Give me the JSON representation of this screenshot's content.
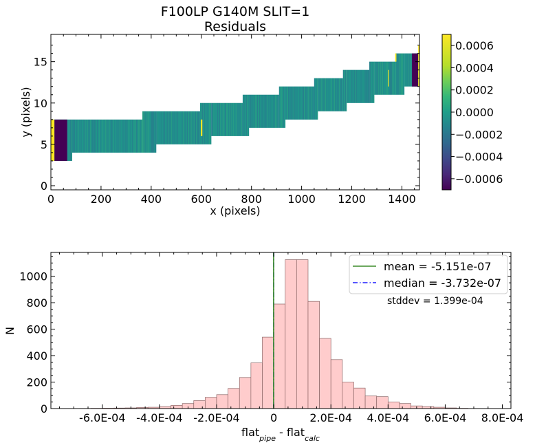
{
  "figure": {
    "title_line1": "F100LP   G140M   SLIT=1",
    "title_line2": "Residuals"
  },
  "chart_data": [
    {
      "type": "heatmap",
      "xlabel": "x (pixels)",
      "ylabel": "y (pixels)",
      "xlim": [
        0,
        1470
      ],
      "ylim": [
        -0.5,
        18.3
      ],
      "xticks": [
        0,
        200,
        400,
        600,
        800,
        1000,
        1200,
        1400
      ],
      "xtick_labels": [
        "0",
        "200",
        "400",
        "600",
        "800",
        "1000",
        "1200",
        "1400"
      ],
      "yticks": [
        0,
        5,
        10,
        15
      ],
      "ytick_labels": [
        "0",
        "5",
        "10",
        "15"
      ],
      "colormap": "viridis",
      "colorbar": {
        "vmin": -0.0007,
        "vmax": 0.0007,
        "ticks": [
          -0.0006,
          -0.0004,
          -0.0002,
          0,
          0.0002,
          0.0004,
          0.0006
        ],
        "tick_labels": [
          "−0.0006",
          "−0.0004",
          "−0.0002",
          "0.0000",
          "0.0002",
          "0.0004",
          "0.0006"
        ]
      },
      "trace_segments": [
        {
          "x0": 0,
          "x1": 65,
          "y0": 3,
          "y1": 8
        },
        {
          "x0": 65,
          "x1": 85,
          "y0": 3,
          "y1": 8
        },
        {
          "x0": 85,
          "x1": 365,
          "y0": 4,
          "y1": 8
        },
        {
          "x0": 365,
          "x1": 420,
          "y0": 4,
          "y1": 9
        },
        {
          "x0": 420,
          "x1": 595,
          "y0": 5,
          "y1": 9
        },
        {
          "x0": 595,
          "x1": 640,
          "y0": 5,
          "y1": 10
        },
        {
          "x0": 640,
          "x1": 765,
          "y0": 6,
          "y1": 10
        },
        {
          "x0": 765,
          "x1": 790,
          "y0": 6,
          "y1": 11
        },
        {
          "x0": 790,
          "x1": 910,
          "y0": 7,
          "y1": 11
        },
        {
          "x0": 910,
          "x1": 935,
          "y0": 7,
          "y1": 12
        },
        {
          "x0": 935,
          "x1": 1050,
          "y0": 8,
          "y1": 12
        },
        {
          "x0": 1050,
          "x1": 1065,
          "y0": 8,
          "y1": 13
        },
        {
          "x0": 1065,
          "x1": 1165,
          "y0": 9,
          "y1": 13
        },
        {
          "x0": 1165,
          "x1": 1180,
          "y0": 9,
          "y1": 14
        },
        {
          "x0": 1180,
          "x1": 1270,
          "y0": 10,
          "y1": 14
        },
        {
          "x0": 1270,
          "x1": 1290,
          "y0": 10,
          "y1": 15
        },
        {
          "x0": 1290,
          "x1": 1375,
          "y0": 11,
          "y1": 15
        },
        {
          "x0": 1375,
          "x1": 1410,
          "y0": 11,
          "y1": 16
        },
        {
          "x0": 1410,
          "x1": 1440,
          "y0": 12,
          "y1": 16
        },
        {
          "x0": 1440,
          "x1": 1465,
          "y0": 12,
          "y1": 16
        }
      ],
      "extreme_patches": [
        {
          "x0": 14,
          "x1": 65,
          "y0": 3,
          "y1": 8,
          "value": -0.0007
        },
        {
          "x0": 1440,
          "x1": 1465,
          "y0": 12,
          "y1": 16,
          "value": -0.0007
        },
        {
          "x0": 0,
          "x1": 14,
          "y0": 3,
          "y1": 8,
          "value": 0.0007
        },
        {
          "x0": 1465,
          "x1": 1470,
          "y0": 12,
          "y1": 17,
          "value": 0.0007
        },
        {
          "x0": 598,
          "x1": 604,
          "y0": 6,
          "y1": 8,
          "value": 0.0007
        },
        {
          "x0": 1373,
          "x1": 1378,
          "y0": 15,
          "y1": 16,
          "value": 0.0007
        },
        {
          "x0": 1344,
          "x1": 1347,
          "y0": 12,
          "y1": 14,
          "value": 0.0006
        }
      ]
    },
    {
      "type": "bar",
      "subtype": "histogram",
      "xlabel": "flat_pipe - flat_calc",
      "xlabel_parts": {
        "a": "flat",
        "a_sub": "pipe",
        "sep": " - ",
        "b": "flat",
        "b_sub": "calc"
      },
      "ylabel": "N",
      "xlim": [
        -0.00078,
        0.00083
      ],
      "ylim": [
        0,
        1180
      ],
      "xticks": [
        -0.0006,
        -0.0004,
        -0.0002,
        0,
        0.0002,
        0.0004,
        0.0006,
        0.0008
      ],
      "xtick_labels": [
        "-6.0E-04",
        "-4.0E-04",
        "-2.0E-04",
        "0",
        "2.0E-04",
        "4.0E-04",
        "6.0E-04",
        "8.0E-04"
      ],
      "yticks": [
        0,
        200,
        400,
        600,
        800,
        1000
      ],
      "ytick_labels": [
        "0",
        "200",
        "400",
        "600",
        "800",
        "1000"
      ],
      "bin_width": 4e-05,
      "bin_left_edges": [
        -0.00068,
        -0.00064,
        -0.0006,
        -0.00056,
        -0.00052,
        -0.00048,
        -0.00044,
        -0.0004,
        -0.00036,
        -0.00032,
        -0.00028,
        -0.00024,
        -0.0002,
        -0.00016,
        -0.00012,
        -8e-05,
        -4e-05,
        0,
        4e-05,
        8e-05,
        0.00012,
        0.00016,
        0.0002,
        0.00024,
        0.00028,
        0.00032,
        0.00036,
        0.0004,
        0.00044,
        0.00048,
        0.00052,
        0.00056,
        0.0006,
        0.00064
      ],
      "counts": [
        1,
        2,
        3,
        4,
        5,
        8,
        10,
        15,
        24,
        38,
        60,
        85,
        105,
        152,
        235,
        345,
        540,
        790,
        1125,
        1125,
        810,
        530,
        370,
        200,
        155,
        95,
        90,
        50,
        38,
        20,
        15,
        10,
        5,
        2
      ],
      "bar_color": "#ffcccc",
      "bar_edge_color": "#8c6666",
      "mean_line": {
        "x": -5.151e-07,
        "color": "#3c8c28",
        "style": "solid",
        "label": "mean = -5.151e-07"
      },
      "median_line": {
        "x": -3.732e-07,
        "color": "#1f1fff",
        "style": "dashdot",
        "label": "median = -3.732e-07"
      },
      "annotation": "stddev = 1.399e-04",
      "legend_position": "top-right"
    }
  ]
}
